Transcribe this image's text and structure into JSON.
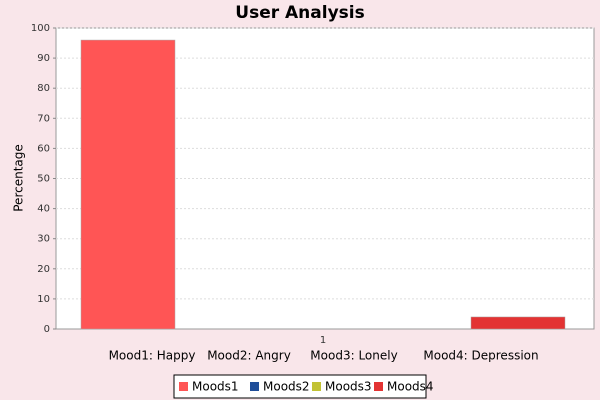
{
  "chart_data": {
    "type": "bar",
    "title": "User Analysis",
    "ylabel": "Percentage",
    "categories": [
      "1"
    ],
    "series": [
      {
        "name": "Moods1",
        "color": "#ff5555",
        "values": [
          96
        ]
      },
      {
        "name": "Moods2",
        "color": "#1f4e99",
        "values": [
          0
        ]
      },
      {
        "name": "Moods3",
        "color": "#c2c234",
        "values": [
          0
        ]
      },
      {
        "name": "Moods4",
        "color": "#e33333",
        "values": [
          4
        ]
      }
    ],
    "annotations": [
      "Mood1: Happy",
      "Mood2: Angry",
      "Mood3: Lonely",
      "Mood4: Depression"
    ],
    "ylim": [
      0,
      100
    ],
    "yticks": [
      0,
      10,
      20,
      30,
      40,
      50,
      60,
      70,
      80,
      90,
      100
    ],
    "grid": true
  }
}
